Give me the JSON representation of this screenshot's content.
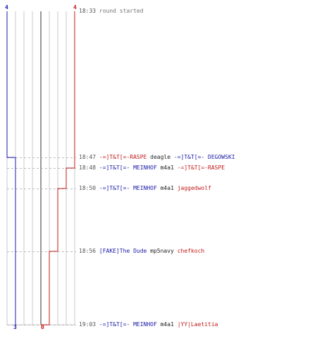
{
  "timeline": {
    "blue_team": {
      "start_score": "4",
      "end_score": "3",
      "color": "#1a1aa8"
    },
    "red_team": {
      "start_score": "4",
      "end_score": "0",
      "color": "#c01a1a"
    },
    "events": [
      {
        "time": "18:33",
        "kind": "start",
        "text": "round started"
      },
      {
        "time": "18:47",
        "killer": "-=]T&T[=-RASPE",
        "killer_team": "red",
        "weapon": "deagle",
        "victim": "-=]T&T[=- DEGOWSKI",
        "victim_team": "blue"
      },
      {
        "time": "18:48",
        "killer": "-=]T&T[=- MEINHOF",
        "killer_team": "blue",
        "weapon": "m4a1",
        "victim": "-=]T&T[=-RASPE",
        "victim_team": "red"
      },
      {
        "time": "18:50",
        "killer": "-=]T&T[=- MEINHOF",
        "killer_team": "blue",
        "weapon": "m4a1",
        "victim": "jaggedwolf",
        "victim_team": "red"
      },
      {
        "time": "18:56",
        "killer": "[FAKE]The Dude",
        "killer_team": "blue",
        "weapon": "mp5navy",
        "victim": "chefkoch",
        "victim_team": "red"
      },
      {
        "time": "19:03",
        "killer": "-=]T&T[=- MEINHOF",
        "killer_team": "blue",
        "weapon": "m4a1",
        "victim": "|YY|Laetitia",
        "victim_team": "red"
      }
    ]
  }
}
